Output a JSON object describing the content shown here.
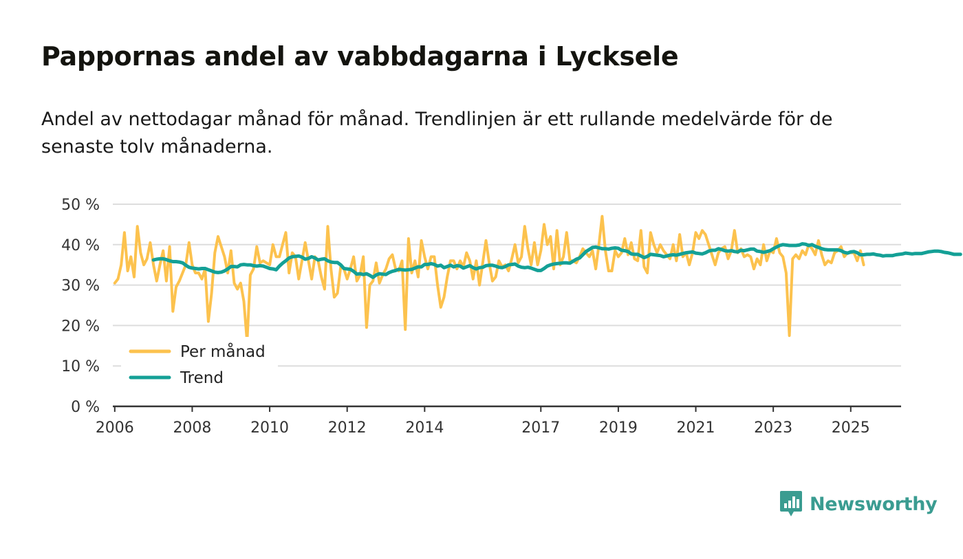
{
  "title": "Pappornas andel av vabbdagarna i Lycksele",
  "subtitle": "Andel av nettodagar månad för månad. Trendlinjen är ett rullande medelvärde för de senaste tolv månaderna.",
  "brand": {
    "name": "Newsworthy",
    "color": "#3a9c91"
  },
  "colors": {
    "monthly": "#fcc24e",
    "trend": "#14a096",
    "grid": "#dddddd",
    "axis": "#333333"
  },
  "chart_data": {
    "type": "line",
    "title": "Pappornas andel av vabbdagarna i Lycksele",
    "xlabel": "",
    "ylabel": "",
    "xlim": [
      2005.95,
      2026.3
    ],
    "ylim": [
      0,
      50
    ],
    "y_ticks": [
      0,
      10,
      20,
      30,
      40,
      50
    ],
    "y_tick_labels": [
      "0 %",
      "10 %",
      "20 %",
      "30 %",
      "40 %",
      "50 %"
    ],
    "x_ticks": [
      2006,
      2008,
      2010,
      2012,
      2014,
      2017,
      2019,
      2021,
      2023,
      2025
    ],
    "x_tick_labels": [
      "2006",
      "2008",
      "2010",
      "2012",
      "2014",
      "2017",
      "2019",
      "2021",
      "2023",
      "2025"
    ],
    "grid": true,
    "legend": {
      "position": "bottom-left",
      "entries": [
        "Per månad",
        "Trend"
      ]
    },
    "series": [
      {
        "name": "Per månad",
        "start": [
          2006,
          1
        ],
        "values": [
          30.5,
          31.5,
          35,
          43,
          33.5,
          37,
          32,
          44.5,
          38,
          35,
          36.5,
          40.5,
          35,
          31,
          35,
          38.5,
          31,
          39.5,
          23.5,
          29.5,
          31,
          33,
          35,
          40.5,
          35,
          33,
          33,
          31.5,
          34,
          21,
          28,
          38,
          42,
          39.5,
          37,
          33,
          38.5,
          30.5,
          29,
          30.5,
          26,
          16,
          32.5,
          34,
          39.5,
          35.5,
          36,
          35.5,
          35,
          40,
          37,
          37,
          40,
          43,
          33,
          38,
          37,
          31.5,
          36,
          40.5,
          36,
          31.5,
          37,
          36,
          32,
          29,
          44.5,
          34,
          27,
          28,
          34.5,
          34,
          31.5,
          34,
          37,
          31,
          32.5,
          37,
          19.5,
          30,
          31,
          35.5,
          30.5,
          32.5,
          34,
          36.5,
          37.5,
          34,
          33.5,
          36,
          19,
          41.5,
          33,
          36,
          32,
          41,
          37,
          34,
          37,
          37,
          30,
          24.5,
          27,
          32,
          36,
          36,
          34,
          36,
          34.5,
          38,
          36,
          31.5,
          36,
          30,
          35.5,
          41,
          35.5,
          31,
          32,
          36,
          34.5,
          35,
          33.5,
          36.5,
          40,
          35.5,
          37,
          44.5,
          39,
          35,
          40.5,
          35,
          38.5,
          45,
          40,
          42,
          34,
          43.5,
          35,
          37,
          43,
          36,
          36,
          35.5,
          37,
          39,
          38,
          37,
          38.5,
          34,
          40,
          47,
          38.5,
          33.5,
          33.5,
          38.5,
          37,
          38,
          41.5,
          37.5,
          40.5,
          36.5,
          36,
          43.5,
          34.5,
          33,
          43,
          40,
          38,
          40,
          38.5,
          37.5,
          36.5,
          40,
          36,
          42.5,
          37,
          38,
          35,
          38,
          43,
          41.5,
          43.5,
          42.5,
          40,
          37.5,
          35,
          38,
          39,
          39.5,
          36.5,
          38.5,
          43.5,
          38,
          39,
          37,
          37.5,
          37,
          34,
          36.5,
          35,
          40,
          36,
          38.5,
          38,
          41.5,
          38,
          37,
          33,
          17.5,
          36.5,
          37.5,
          36.5,
          38.5,
          37.5,
          40,
          39,
          37.5,
          41,
          37.5,
          35,
          36,
          35.5,
          38,
          38.5,
          39.5,
          37,
          38,
          38,
          38,
          36,
          38.5,
          35
        ]
      },
      {
        "name": "Trend",
        "start": [
          2007,
          1
        ],
        "values": [
          36.2,
          36.4,
          36.5,
          36.5,
          36.3,
          36.0,
          35.8,
          35.8,
          35.7,
          35.5,
          34.9,
          34.4,
          34.2,
          34.1,
          34.0,
          34.1,
          34.1,
          33.8,
          33.5,
          33.2,
          33.1,
          33.2,
          33.5,
          34.0,
          34.6,
          34.6,
          34.5,
          35.0,
          35.1,
          35.0,
          35.0,
          34.8,
          34.7,
          34.8,
          34.7,
          34.4,
          34.1,
          34.0,
          33.8,
          34.7,
          35.4,
          36.0,
          36.7,
          37.0,
          37.1,
          37.2,
          36.9,
          36.4,
          36.6,
          37.0,
          36.7,
          36.2,
          36.4,
          36.5,
          36.0,
          35.7,
          35.6,
          35.6,
          35.0,
          34.1,
          34.0,
          33.9,
          33.4,
          32.7,
          32.8,
          32.6,
          32.8,
          32.4,
          31.9,
          32.5,
          32.8,
          32.7,
          32.6,
          33.1,
          33.4,
          33.6,
          33.9,
          33.8,
          33.7,
          33.8,
          33.9,
          34.2,
          34.5,
          34.5,
          35.1,
          35.1,
          35.3,
          35.1,
          34.7,
          34.9,
          34.3,
          34.6,
          34.9,
          34.5,
          34.8,
          34.7,
          34.2,
          34.5,
          34.8,
          34.3,
          34.0,
          34.3,
          34.4,
          34.8,
          34.9,
          34.9,
          34.7,
          34.4,
          34.3,
          34.6,
          35.0,
          35.1,
          35.2,
          34.7,
          34.4,
          34.3,
          34.4,
          34.2,
          33.9,
          33.6,
          33.6,
          34.1,
          34.7,
          35.0,
          35.2,
          35.3,
          35.4,
          35.5,
          35.5,
          35.4,
          35.9,
          36.4,
          36.7,
          37.5,
          38.3,
          38.8,
          39.3,
          39.4,
          39.2,
          39.0,
          39.0,
          38.9,
          39.1,
          39.2,
          39.1,
          38.6,
          38.5,
          38.3,
          37.7,
          37.6,
          37.6,
          37.2,
          36.8,
          37.1,
          37.6,
          37.5,
          37.4,
          37.3,
          37.0,
          37.2,
          37.4,
          37.5,
          37.4,
          37.6,
          37.8,
          38.0,
          38.1,
          38.2,
          37.9,
          37.8,
          37.7,
          38.0,
          38.4,
          38.6,
          38.6,
          39.0,
          38.8,
          38.5,
          38.4,
          38.5,
          38.3,
          38.2,
          38.6,
          38.5,
          38.7,
          38.9,
          38.9,
          38.4,
          38.3,
          38.1,
          38.3,
          38.5,
          39.0,
          39.4,
          39.8,
          40.0,
          39.9,
          39.8,
          39.8,
          39.8,
          39.9,
          40.2,
          40.1,
          39.8,
          40.0,
          39.6,
          39.3,
          39.0,
          38.8,
          38.7,
          38.7,
          38.7,
          38.7,
          38.5,
          38.1,
          37.9,
          38.2,
          38.3,
          38.0,
          37.5,
          37.5,
          37.6,
          37.6,
          37.7,
          37.5,
          37.4,
          37.2,
          37.3,
          37.3,
          37.3,
          37.5,
          37.6,
          37.7,
          37.9,
          37.8,
          37.7,
          37.8,
          37.8,
          37.8,
          38.0,
          38.2,
          38.3,
          38.4,
          38.4,
          38.3,
          38.1,
          38.0,
          37.8,
          37.6,
          37.6,
          37.6
        ]
      }
    ]
  }
}
